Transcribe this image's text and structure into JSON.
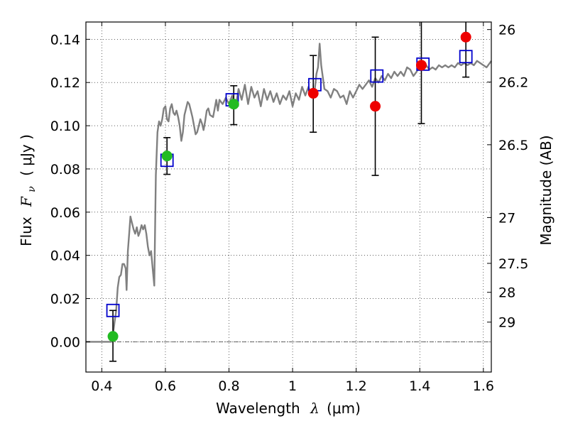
{
  "chart_data": {
    "type": "scatter",
    "xlabel": "Wavelength",
    "xlabel_symbol": "λ",
    "xlabel_unit": "(μm)",
    "ylabel": "Flux",
    "ylabel_symbol": "F",
    "ylabel_subscript": "ν",
    "ylabel_unit": "( μJy )",
    "y2label": "Magnitude (AB)",
    "xlim": [
      0.35,
      1.625
    ],
    "ylim": [
      -0.014,
      0.148
    ],
    "grid": true,
    "grid_style": "dotted",
    "x_ticks": [
      0.4,
      0.6,
      0.8,
      1.0,
      1.2,
      1.4,
      1.6
    ],
    "x_tick_labels": [
      "0.4",
      "0.6",
      "0.8",
      "1",
      "1.2",
      "1.4",
      "1.6"
    ],
    "y_ticks": [
      0.0,
      0.02,
      0.04,
      0.06,
      0.08,
      0.1,
      0.12,
      0.14
    ],
    "y_tick_labels": [
      "0.00",
      "0.02",
      "0.04",
      "0.06",
      "0.08",
      "0.10",
      "0.12",
      "0.14"
    ],
    "y2_ticks": [
      {
        "label": "26",
        "flux": 0.1445
      },
      {
        "label": "26.2",
        "flux": 0.1202
      },
      {
        "label": "26.5",
        "flux": 0.0912
      },
      {
        "label": "27",
        "flux": 0.0575
      },
      {
        "label": "27.5",
        "flux": 0.0363
      },
      {
        "label": "28",
        "flux": 0.0229
      },
      {
        "label": "29",
        "flux": 0.0091
      }
    ],
    "series": [
      {
        "kind": "line",
        "color": "#808080",
        "points": [
          [
            0.35,
            0.0
          ],
          [
            0.43,
            0.0
          ],
          [
            0.435,
            0.003
          ],
          [
            0.44,
            0.009
          ],
          [
            0.445,
            0.014
          ],
          [
            0.45,
            0.025
          ],
          [
            0.455,
            0.03
          ],
          [
            0.46,
            0.031
          ],
          [
            0.465,
            0.036
          ],
          [
            0.47,
            0.036
          ],
          [
            0.475,
            0.034
          ],
          [
            0.478,
            0.024
          ],
          [
            0.482,
            0.042
          ],
          [
            0.487,
            0.052
          ],
          [
            0.49,
            0.058
          ],
          [
            0.495,
            0.055
          ],
          [
            0.5,
            0.052
          ],
          [
            0.505,
            0.05
          ],
          [
            0.51,
            0.053
          ],
          [
            0.515,
            0.049
          ],
          [
            0.52,
            0.051
          ],
          [
            0.525,
            0.054
          ],
          [
            0.53,
            0.052
          ],
          [
            0.535,
            0.054
          ],
          [
            0.54,
            0.05
          ],
          [
            0.545,
            0.044
          ],
          [
            0.55,
            0.04
          ],
          [
            0.555,
            0.042
          ],
          [
            0.56,
            0.034
          ],
          [
            0.565,
            0.026
          ],
          [
            0.57,
            0.077
          ],
          [
            0.575,
            0.097
          ],
          [
            0.58,
            0.102
          ],
          [
            0.585,
            0.1
          ],
          [
            0.59,
            0.103
          ],
          [
            0.595,
            0.108
          ],
          [
            0.6,
            0.109
          ],
          [
            0.605,
            0.103
          ],
          [
            0.61,
            0.102
          ],
          [
            0.615,
            0.108
          ],
          [
            0.62,
            0.11
          ],
          [
            0.625,
            0.106
          ],
          [
            0.63,
            0.105
          ],
          [
            0.635,
            0.107
          ],
          [
            0.64,
            0.104
          ],
          [
            0.645,
            0.1
          ],
          [
            0.65,
            0.093
          ],
          [
            0.655,
            0.097
          ],
          [
            0.66,
            0.105
          ],
          [
            0.665,
            0.108
          ],
          [
            0.67,
            0.111
          ],
          [
            0.675,
            0.11
          ],
          [
            0.68,
            0.107
          ],
          [
            0.685,
            0.104
          ],
          [
            0.69,
            0.1
          ],
          [
            0.695,
            0.096
          ],
          [
            0.7,
            0.097
          ],
          [
            0.705,
            0.1
          ],
          [
            0.71,
            0.103
          ],
          [
            0.715,
            0.101
          ],
          [
            0.72,
            0.098
          ],
          [
            0.725,
            0.102
          ],
          [
            0.73,
            0.107
          ],
          [
            0.735,
            0.108
          ],
          [
            0.74,
            0.105
          ],
          [
            0.75,
            0.104
          ],
          [
            0.755,
            0.108
          ],
          [
            0.76,
            0.112
          ],
          [
            0.765,
            0.107
          ],
          [
            0.77,
            0.112
          ],
          [
            0.78,
            0.11
          ],
          [
            0.79,
            0.113
          ],
          [
            0.8,
            0.11
          ],
          [
            0.81,
            0.114
          ],
          [
            0.82,
            0.108
          ],
          [
            0.83,
            0.117
          ],
          [
            0.84,
            0.112
          ],
          [
            0.85,
            0.119
          ],
          [
            0.86,
            0.11
          ],
          [
            0.87,
            0.118
          ],
          [
            0.88,
            0.113
          ],
          [
            0.89,
            0.116
          ],
          [
            0.9,
            0.109
          ],
          [
            0.91,
            0.117
          ],
          [
            0.92,
            0.112
          ],
          [
            0.93,
            0.116
          ],
          [
            0.94,
            0.111
          ],
          [
            0.95,
            0.115
          ],
          [
            0.96,
            0.11
          ],
          [
            0.97,
            0.114
          ],
          [
            0.98,
            0.112
          ],
          [
            0.99,
            0.116
          ],
          [
            1.0,
            0.109
          ],
          [
            1.01,
            0.115
          ],
          [
            1.02,
            0.112
          ],
          [
            1.03,
            0.118
          ],
          [
            1.04,
            0.114
          ],
          [
            1.05,
            0.118
          ],
          [
            1.06,
            0.113
          ],
          [
            1.07,
            0.117
          ],
          [
            1.075,
            0.124
          ],
          [
            1.08,
            0.127
          ],
          [
            1.085,
            0.138
          ],
          [
            1.09,
            0.128
          ],
          [
            1.1,
            0.117
          ],
          [
            1.11,
            0.116
          ],
          [
            1.12,
            0.113
          ],
          [
            1.13,
            0.117
          ],
          [
            1.14,
            0.116
          ],
          [
            1.15,
            0.113
          ],
          [
            1.16,
            0.114
          ],
          [
            1.17,
            0.11
          ],
          [
            1.18,
            0.116
          ],
          [
            1.19,
            0.113
          ],
          [
            1.2,
            0.116
          ],
          [
            1.21,
            0.119
          ],
          [
            1.22,
            0.117
          ],
          [
            1.23,
            0.119
          ],
          [
            1.24,
            0.121
          ],
          [
            1.25,
            0.118
          ],
          [
            1.26,
            0.122
          ],
          [
            1.27,
            0.12
          ],
          [
            1.28,
            0.123
          ],
          [
            1.29,
            0.121
          ],
          [
            1.3,
            0.124
          ],
          [
            1.31,
            0.122
          ],
          [
            1.32,
            0.125
          ],
          [
            1.33,
            0.123
          ],
          [
            1.34,
            0.125
          ],
          [
            1.35,
            0.123
          ],
          [
            1.36,
            0.127
          ],
          [
            1.37,
            0.126
          ],
          [
            1.38,
            0.123
          ],
          [
            1.39,
            0.125
          ],
          [
            1.4,
            0.128
          ],
          [
            1.41,
            0.127
          ],
          [
            1.42,
            0.128
          ],
          [
            1.43,
            0.126
          ],
          [
            1.44,
            0.127
          ],
          [
            1.45,
            0.126
          ],
          [
            1.46,
            0.128
          ],
          [
            1.47,
            0.127
          ],
          [
            1.48,
            0.128
          ],
          [
            1.49,
            0.127
          ],
          [
            1.5,
            0.128
          ],
          [
            1.51,
            0.127
          ],
          [
            1.52,
            0.129
          ],
          [
            1.53,
            0.128
          ],
          [
            1.54,
            0.129
          ],
          [
            1.55,
            0.128
          ],
          [
            1.56,
            0.129
          ],
          [
            1.57,
            0.128
          ],
          [
            1.58,
            0.13
          ],
          [
            1.59,
            0.129
          ],
          [
            1.6,
            0.128
          ],
          [
            1.61,
            0.127
          ],
          [
            1.625,
            0.13
          ]
        ]
      },
      {
        "kind": "markers",
        "marker": "square",
        "color": "#0000cc",
        "points": [
          [
            0.435,
            0.0145
          ],
          [
            0.605,
            0.084
          ],
          [
            0.81,
            0.112
          ],
          [
            1.07,
            0.119
          ],
          [
            1.265,
            0.123
          ],
          [
            1.41,
            0.1285
          ],
          [
            1.545,
            0.132
          ]
        ]
      },
      {
        "kind": "markers",
        "marker": "circle",
        "color": "#22bb22",
        "points": [
          [
            0.435,
            0.0025
          ],
          [
            0.605,
            0.086
          ],
          [
            0.815,
            0.11
          ]
        ]
      },
      {
        "kind": "markers",
        "marker": "circle",
        "color": "#ee0000",
        "points": [
          [
            1.065,
            0.115
          ],
          [
            1.26,
            0.109
          ],
          [
            1.405,
            0.128
          ],
          [
            1.545,
            0.141
          ]
        ]
      }
    ],
    "error_bars": [
      {
        "x": 0.435,
        "low": -0.009,
        "high": 0.0145
      },
      {
        "x": 0.605,
        "low": 0.0775,
        "high": 0.0945
      },
      {
        "x": 0.815,
        "low": 0.1005,
        "high": 0.1185
      },
      {
        "x": 1.065,
        "low": 0.097,
        "high": 0.1325
      },
      {
        "x": 1.26,
        "low": 0.077,
        "high": 0.141
      },
      {
        "x": 1.405,
        "low": 0.101,
        "high": 0.148
      },
      {
        "x": 1.545,
        "low": 0.1225,
        "high": 0.148
      }
    ],
    "zero_line": 0.0
  }
}
